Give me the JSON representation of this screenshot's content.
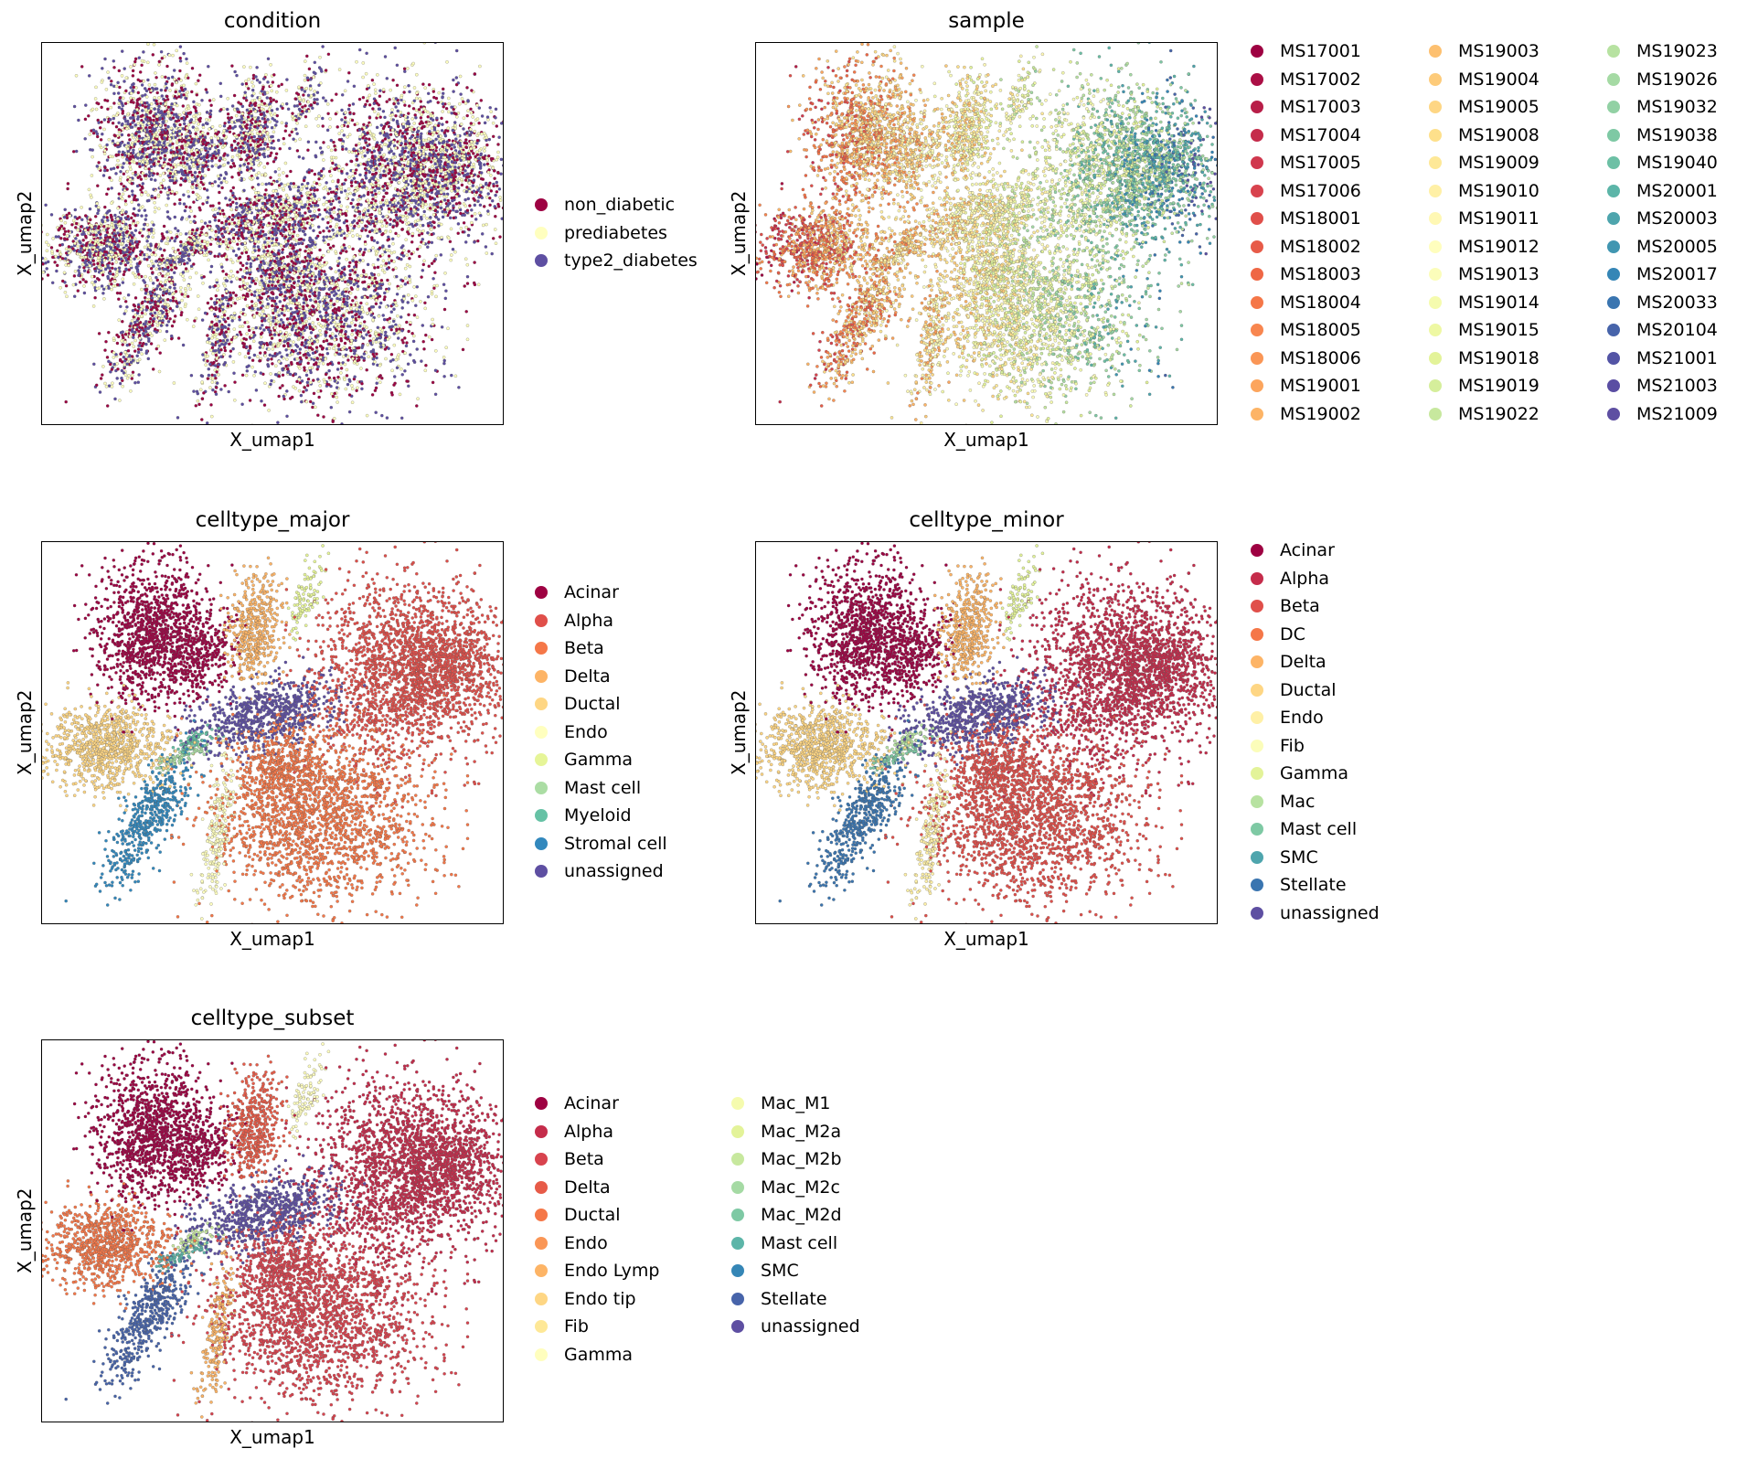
{
  "figure": {
    "x_axis_label": "X_umap1",
    "y_axis_label": "X_umap2"
  },
  "chart_data": [
    {
      "type": "scatter",
      "title": "condition",
      "xlabel": "X_umap1",
      "ylabel": "X_umap2",
      "grid": false,
      "legend_placement": "right",
      "legend_columns": 1,
      "categories": [
        "non_diabetic",
        "prediabetes",
        "type2_diabetes"
      ],
      "colors": [
        "#9e0142",
        "#ffffbf",
        "#5e4fa2"
      ]
    },
    {
      "type": "scatter",
      "title": "sample",
      "xlabel": "X_umap1",
      "ylabel": "X_umap2",
      "grid": false,
      "legend_placement": "right",
      "legend_columns": 3,
      "categories": [
        "MS17001",
        "MS17002",
        "MS17003",
        "MS17004",
        "MS17005",
        "MS17006",
        "MS18001",
        "MS18002",
        "MS18003",
        "MS18004",
        "MS18005",
        "MS18006",
        "MS19001",
        "MS19002",
        "MS19003",
        "MS19004",
        "MS19005",
        "MS19008",
        "MS19009",
        "MS19010",
        "MS19011",
        "MS19012",
        "MS19013",
        "MS19014",
        "MS19015",
        "MS19018",
        "MS19019",
        "MS19022",
        "MS19023",
        "MS19026",
        "MS19032",
        "MS19038",
        "MS19040",
        "MS20001",
        "MS20003",
        "MS20005",
        "MS20017",
        "MS20033",
        "MS20104",
        "MS21001",
        "MS21003",
        "MS21009"
      ],
      "colors": [
        "#9e0142",
        "#ab0f45",
        "#b81e48",
        "#c52c4b",
        "#d0384e",
        "#d8434e",
        "#e04f4a",
        "#e75b48",
        "#ef6745",
        "#f57748",
        "#f8864f",
        "#fa9656",
        "#fca55d",
        "#fdb466",
        "#fdc070",
        "#fdcb7a",
        "#fed684",
        "#fee08b",
        "#fee897",
        "#fff0a6",
        "#fff8b4",
        "#fffebe",
        "#fbfdba",
        "#f5fbae",
        "#eef8a3",
        "#e3f399",
        "#d5ee9b",
        "#c7e89e",
        "#b7e2a1",
        "#a5daa4",
        "#92d1a4",
        "#7ec9a4",
        "#6dc0a5",
        "#5cb5a8",
        "#4ea5ad",
        "#4196b1",
        "#3586b6",
        "#3a75b0",
        "#4764aa",
        "#5354a5",
        "#5a4ea3",
        "#5e4fa2"
      ]
    },
    {
      "type": "scatter",
      "title": "celltype_major",
      "xlabel": "X_umap1",
      "ylabel": "X_umap2",
      "grid": false,
      "legend_placement": "right",
      "legend_columns": 1,
      "categories": [
        "Acinar",
        "Alpha",
        "Beta",
        "Delta",
        "Ductal",
        "Endo",
        "Gamma",
        "Mast cell",
        "Myeloid",
        "Stromal cell",
        "unassigned"
      ],
      "colors": [
        "#9e0142",
        "#e04f4a",
        "#f57748",
        "#fdb466",
        "#fed684",
        "#ffffbf",
        "#e6f598",
        "#abdda4",
        "#66c2a5",
        "#3288bd",
        "#5e4fa2"
      ]
    },
    {
      "type": "scatter",
      "title": "celltype_minor",
      "xlabel": "X_umap1",
      "ylabel": "X_umap2",
      "grid": false,
      "legend_placement": "right",
      "legend_columns": 1,
      "categories": [
        "Acinar",
        "Alpha",
        "Beta",
        "DC",
        "Delta",
        "Ductal",
        "Endo",
        "Fib",
        "Gamma",
        "Mac",
        "Mast cell",
        "SMC",
        "Stellate",
        "unassigned"
      ],
      "colors": [
        "#9e0142",
        "#c52c4b",
        "#e04f4a",
        "#f57748",
        "#fdb466",
        "#fed684",
        "#fff0a6",
        "#fbfdba",
        "#e3f399",
        "#b7e2a1",
        "#7ec9a4",
        "#4ea5ad",
        "#3a75b0",
        "#5e4fa2"
      ]
    },
    {
      "type": "scatter",
      "title": "celltype_subset",
      "xlabel": "X_umap1",
      "ylabel": "X_umap2",
      "grid": false,
      "legend_placement": "right",
      "legend_columns": 2,
      "categories": [
        "Acinar",
        "Alpha",
        "Beta",
        "Delta",
        "Ductal",
        "Endo",
        "Endo Lymp",
        "Endo tip",
        "Fib",
        "Gamma",
        "Mac_M1",
        "Mac_M2a",
        "Mac_M2b",
        "Mac_M2c",
        "Mac_M2d",
        "Mast cell",
        "SMC",
        "Stellate",
        "unassigned"
      ],
      "colors": [
        "#9e0142",
        "#c52c4b",
        "#d8434e",
        "#e75b48",
        "#f57748",
        "#fa9656",
        "#fdb466",
        "#fed684",
        "#fee897",
        "#fffebe",
        "#f5fbae",
        "#e3f399",
        "#c7e89e",
        "#a5daa4",
        "#7ec9a4",
        "#5cb5a8",
        "#3586b6",
        "#4764aa",
        "#5e4fa2"
      ]
    }
  ]
}
